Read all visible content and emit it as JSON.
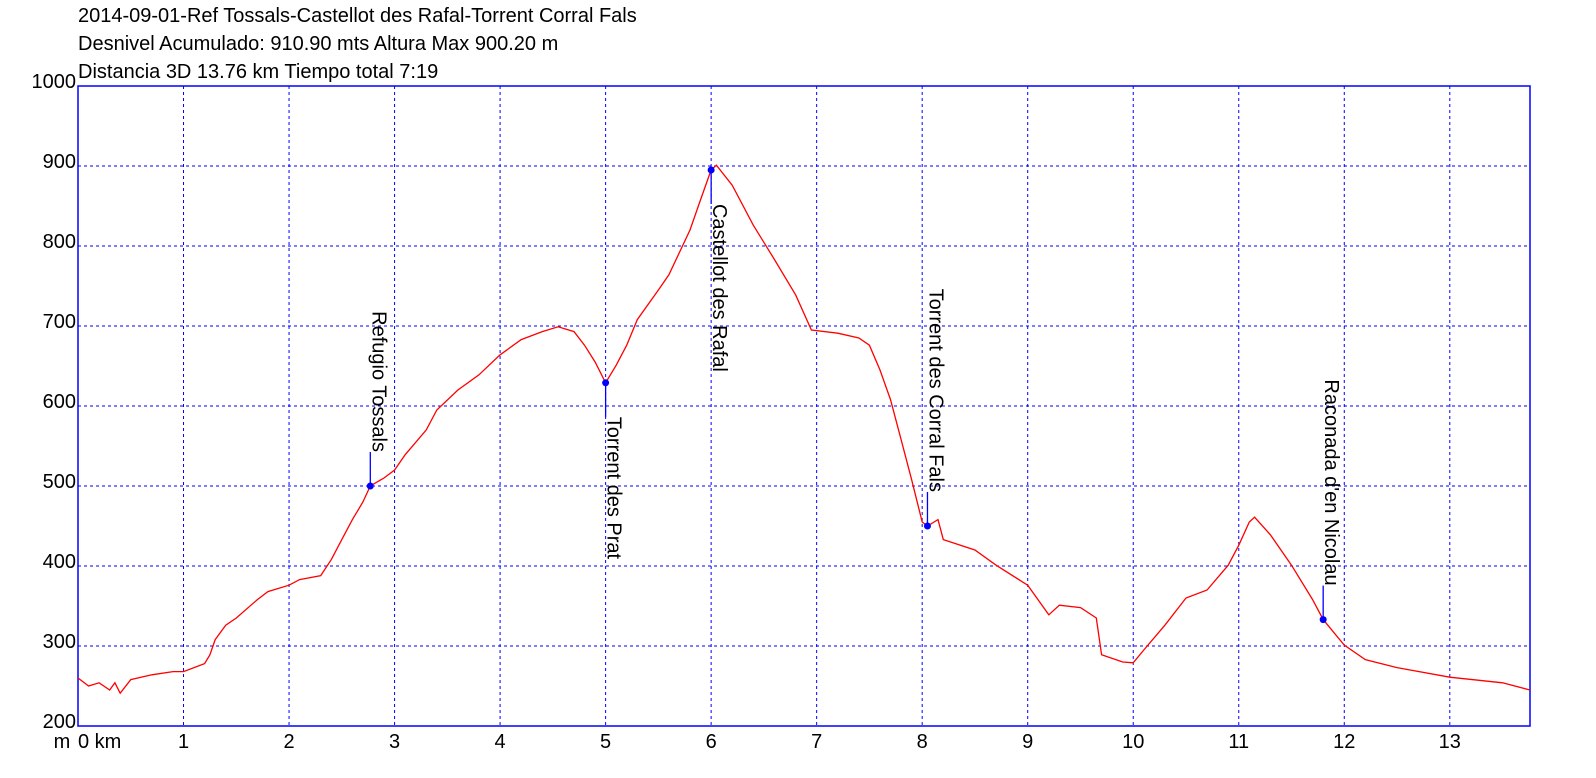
{
  "chart_data": {
    "type": "line",
    "title_lines": [
      "2014-09-01-Ref Tossals-Castellot des Rafal-Torrent Corral Fals",
      "Desnivel Acumulado: 910.90 mts  Altura Max 900.20 m",
      "Distancia 3D 13.76 km  Tiempo total 7:19"
    ],
    "y_label": "m",
    "x": [
      0,
      0.1,
      0.2,
      0.3,
      0.35,
      0.4,
      0.5,
      0.7,
      0.9,
      1.0,
      1.2,
      1.25,
      1.3,
      1.4,
      1.5,
      1.7,
      1.8,
      2.0,
      2.1,
      2.3,
      2.4,
      2.5,
      2.6,
      2.7,
      2.77,
      2.9,
      3.0,
      3.1,
      3.3,
      3.4,
      3.6,
      3.8,
      4.0,
      4.2,
      4.4,
      4.55,
      4.7,
      4.8,
      4.9,
      5.0,
      5.1,
      5.2,
      5.3,
      5.5,
      5.6,
      5.8,
      5.9,
      6.0,
      6.05,
      6.2,
      6.4,
      6.6,
      6.8,
      6.95,
      7.2,
      7.4,
      7.5,
      7.6,
      7.7,
      7.8,
      7.9,
      8.0,
      8.05,
      8.15,
      8.2,
      8.5,
      8.7,
      9.0,
      9.2,
      9.3,
      9.5,
      9.65,
      9.7,
      9.9,
      10.0,
      10.1,
      10.3,
      10.5,
      10.7,
      10.9,
      11.0,
      11.1,
      11.15,
      11.3,
      11.5,
      11.7,
      11.8,
      12.0,
      12.2,
      12.5,
      13.0,
      13.5,
      13.76
    ],
    "values": [
      260,
      250,
      254,
      245,
      254,
      241,
      258,
      264,
      268,
      268,
      278,
      289,
      308,
      326,
      335,
      358,
      368,
      376,
      383,
      388,
      408,
      433,
      458,
      480,
      500,
      510,
      520,
      539,
      570,
      595,
      620,
      639,
      664,
      683,
      693,
      699,
      693,
      676,
      655,
      629,
      651,
      676,
      708,
      745,
      764,
      820,
      858,
      895,
      901,
      876,
      826,
      783,
      739,
      695,
      691,
      685,
      676,
      645,
      608,
      558,
      508,
      455,
      450,
      458,
      433,
      420,
      401,
      376,
      339,
      351,
      348,
      335,
      289,
      280,
      279,
      295,
      326,
      360,
      370,
      401,
      426,
      455,
      461,
      439,
      401,
      358,
      333,
      301,
      283,
      273,
      261,
      254,
      245
    ],
    "color": "#ff0000",
    "marker_color": "#0000ff",
    "axis_color": "#0000ff",
    "grid": true,
    "xlim": [
      0,
      13.76
    ],
    "ylim": [
      200,
      1000
    ],
    "xticks": [
      {
        "value": 0,
        "label": "0 km"
      },
      1,
      2,
      3,
      4,
      5,
      6,
      7,
      8,
      9,
      10,
      11,
      12,
      13
    ],
    "yticks": [
      200,
      300,
      400,
      500,
      600,
      700,
      800,
      900,
      1000
    ],
    "annotations": [
      {
        "text": "Refugio Tossals",
        "x": 2.77,
        "y": 500,
        "position": "above"
      },
      {
        "text": "Torrent des Prat",
        "x": 5.0,
        "y": 629,
        "position": "below"
      },
      {
        "text": "Castellot des Rafal",
        "x": 6.0,
        "y": 895,
        "position": "below"
      },
      {
        "text": "Torrent des Corral Fals",
        "x": 8.05,
        "y": 450,
        "position": "above"
      },
      {
        "text": "Raconada d'en Nicolau",
        "x": 11.8,
        "y": 333,
        "position": "above"
      }
    ]
  }
}
